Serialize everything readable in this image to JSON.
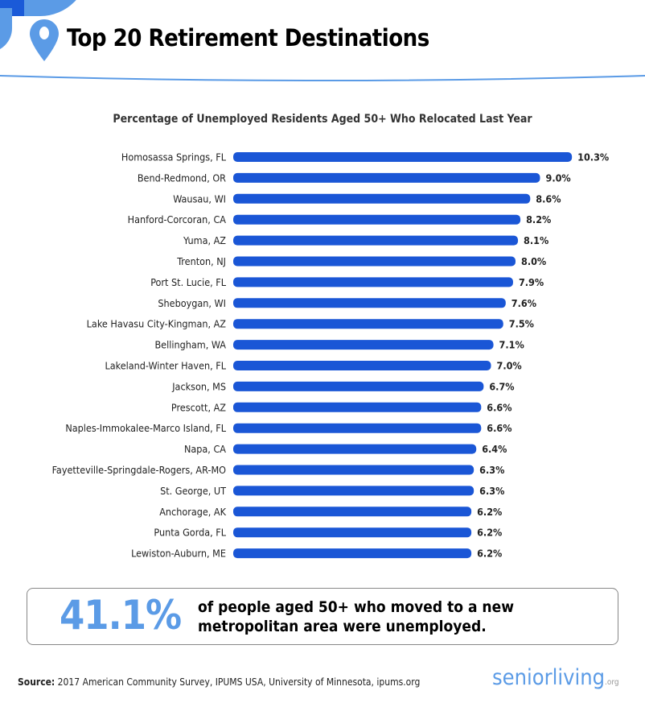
{
  "header": {
    "title": "Top 20 Retirement Destinations"
  },
  "chart_data": {
    "type": "bar",
    "orientation": "horizontal",
    "title": "Percentage of Unemployed Residents Aged 50+ Who Relocated Last Year",
    "categories": [
      "Homosassa Springs, FL",
      "Bend-Redmond, OR",
      "Wausau, WI",
      "Hanford-Corcoran, CA",
      "Yuma, AZ",
      "Trenton, NJ",
      "Port St. Lucie, FL",
      "Sheboygan, WI",
      "Lake Havasu City-Kingman, AZ",
      "Bellingham, WA",
      "Lakeland-Winter Haven, FL",
      "Jackson, MS",
      "Prescott, AZ",
      "Naples-Immokalee-Marco Island, FL",
      "Napa, CA",
      "Fayetteville-Springdale-Rogers, AR-MO",
      "St. George, UT",
      "Anchorage, AK",
      "Punta Gorda, FL",
      "Lewiston-Auburn, ME"
    ],
    "values": [
      10.3,
      9.0,
      8.6,
      8.2,
      8.1,
      8.0,
      7.9,
      7.6,
      7.5,
      7.1,
      7.0,
      6.7,
      6.6,
      6.6,
      6.4,
      6.3,
      6.3,
      6.2,
      6.2,
      6.2
    ],
    "value_suffix": "%",
    "bar_color": "#1a56d6"
  },
  "callout": {
    "stat": "41.1%",
    "text": "of people aged 50+ who moved to a new metropolitan area were unemployed."
  },
  "source": {
    "label": "Source:",
    "text": " 2017 American Community Survey, IPUMS USA, University of Minnesota, ipums.org"
  },
  "logo": {
    "name": "seniorliving",
    "tld": ".org"
  }
}
